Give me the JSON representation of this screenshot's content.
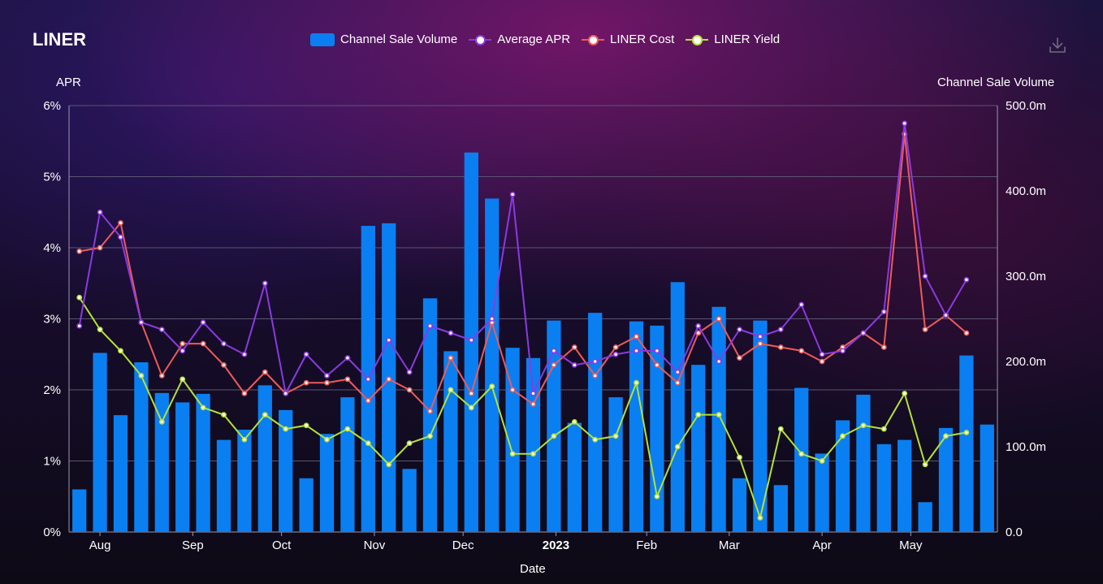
{
  "page": {
    "title": "LINER",
    "download_icon": "download-icon"
  },
  "chart_data": {
    "type": "bar+line",
    "title": "LINER",
    "xlabel": "Date",
    "y_left_label": "APR",
    "y_right_label": "Channel Sale Volume",
    "y_left_ticks": [
      "0%",
      "1%",
      "2%",
      "3%",
      "4%",
      "5%",
      "6%"
    ],
    "y_left_range": [
      0,
      6
    ],
    "y_right_ticks": [
      "0.0",
      "100.0m",
      "200.0m",
      "300.0m",
      "400.0m",
      "500.0m"
    ],
    "y_right_range": [
      0,
      500
    ],
    "grid": true,
    "legend_position": "top-center",
    "x_tick_labels": [
      {
        "label": "Aug",
        "week": 1,
        "bold": false
      },
      {
        "label": "Sep",
        "week": 5.5,
        "bold": false
      },
      {
        "label": "Oct",
        "week": 9.8,
        "bold": false
      },
      {
        "label": "Nov",
        "week": 14.3,
        "bold": false
      },
      {
        "label": "Dec",
        "week": 18.6,
        "bold": false
      },
      {
        "label": "2023",
        "week": 23.1,
        "bold": true
      },
      {
        "label": "Feb",
        "week": 27.5,
        "bold": false
      },
      {
        "label": "Mar",
        "week": 31.5,
        "bold": false
      },
      {
        "label": "Apr",
        "week": 36,
        "bold": false
      },
      {
        "label": "May",
        "week": 40.3,
        "bold": false
      }
    ],
    "colors": {
      "bars": "#0a7ff2",
      "average_apr": "#8a3ae0",
      "liner_cost": "#ee5a5a",
      "liner_yield": "#b5e233",
      "grid": "#5a5672",
      "axis": "#9a98b0"
    },
    "series": [
      {
        "name": "Channel Sale Volume",
        "type": "bar",
        "axis": "right",
        "values": [
          50,
          210,
          137,
          199,
          163,
          152,
          162,
          108,
          120,
          172,
          143,
          63,
          115,
          158,
          359,
          362,
          74,
          274,
          212,
          445,
          391,
          216,
          204,
          248,
          128,
          257,
          158,
          247,
          242,
          293,
          196,
          264,
          63,
          248,
          55,
          169,
          92,
          131,
          161,
          103,
          108,
          35,
          122,
          207,
          126
        ]
      },
      {
        "name": "Average APR",
        "type": "line",
        "axis": "left",
        "values": [
          2.9,
          4.5,
          4.15,
          2.95,
          2.85,
          2.55,
          2.95,
          2.65,
          2.5,
          3.5,
          1.95,
          2.5,
          2.2,
          2.45,
          2.15,
          2.7,
          2.25,
          2.9,
          2.8,
          2.7,
          3.0,
          4.75,
          1.95,
          2.55,
          2.35,
          2.4,
          2.5,
          2.55,
          2.55,
          2.25,
          2.9,
          2.4,
          2.85,
          2.75,
          2.85,
          3.2,
          2.5,
          2.55,
          2.8,
          3.1,
          5.75,
          3.6,
          3.05,
          3.55
        ]
      },
      {
        "name": "LINER Cost",
        "type": "line",
        "axis": "left",
        "values": [
          3.95,
          4.0,
          4.35,
          2.95,
          2.2,
          2.65,
          2.65,
          2.35,
          1.95,
          2.25,
          1.95,
          2.1,
          2.1,
          2.15,
          1.85,
          2.15,
          2.0,
          1.7,
          2.45,
          1.95,
          2.95,
          2.0,
          1.8,
          2.35,
          2.6,
          2.2,
          2.6,
          2.75,
          2.35,
          2.1,
          2.8,
          3.0,
          2.45,
          2.65,
          2.6,
          2.55,
          2.4,
          2.6,
          2.8,
          2.6,
          5.6,
          2.85,
          3.05,
          2.8
        ]
      },
      {
        "name": "LINER Yield",
        "type": "line",
        "axis": "left",
        "values": [
          3.3,
          2.85,
          2.55,
          2.2,
          1.55,
          2.15,
          1.75,
          1.65,
          1.3,
          1.65,
          1.45,
          1.5,
          1.3,
          1.45,
          1.25,
          0.95,
          1.25,
          1.35,
          2.0,
          1.75,
          2.05,
          1.1,
          1.1,
          1.35,
          1.55,
          1.3,
          1.35,
          2.1,
          0.5,
          1.2,
          1.65,
          1.65,
          1.05,
          0.2,
          1.45,
          1.1,
          1.0,
          1.35,
          1.5,
          1.45,
          1.95,
          0.95,
          1.35,
          1.4
        ]
      }
    ]
  }
}
